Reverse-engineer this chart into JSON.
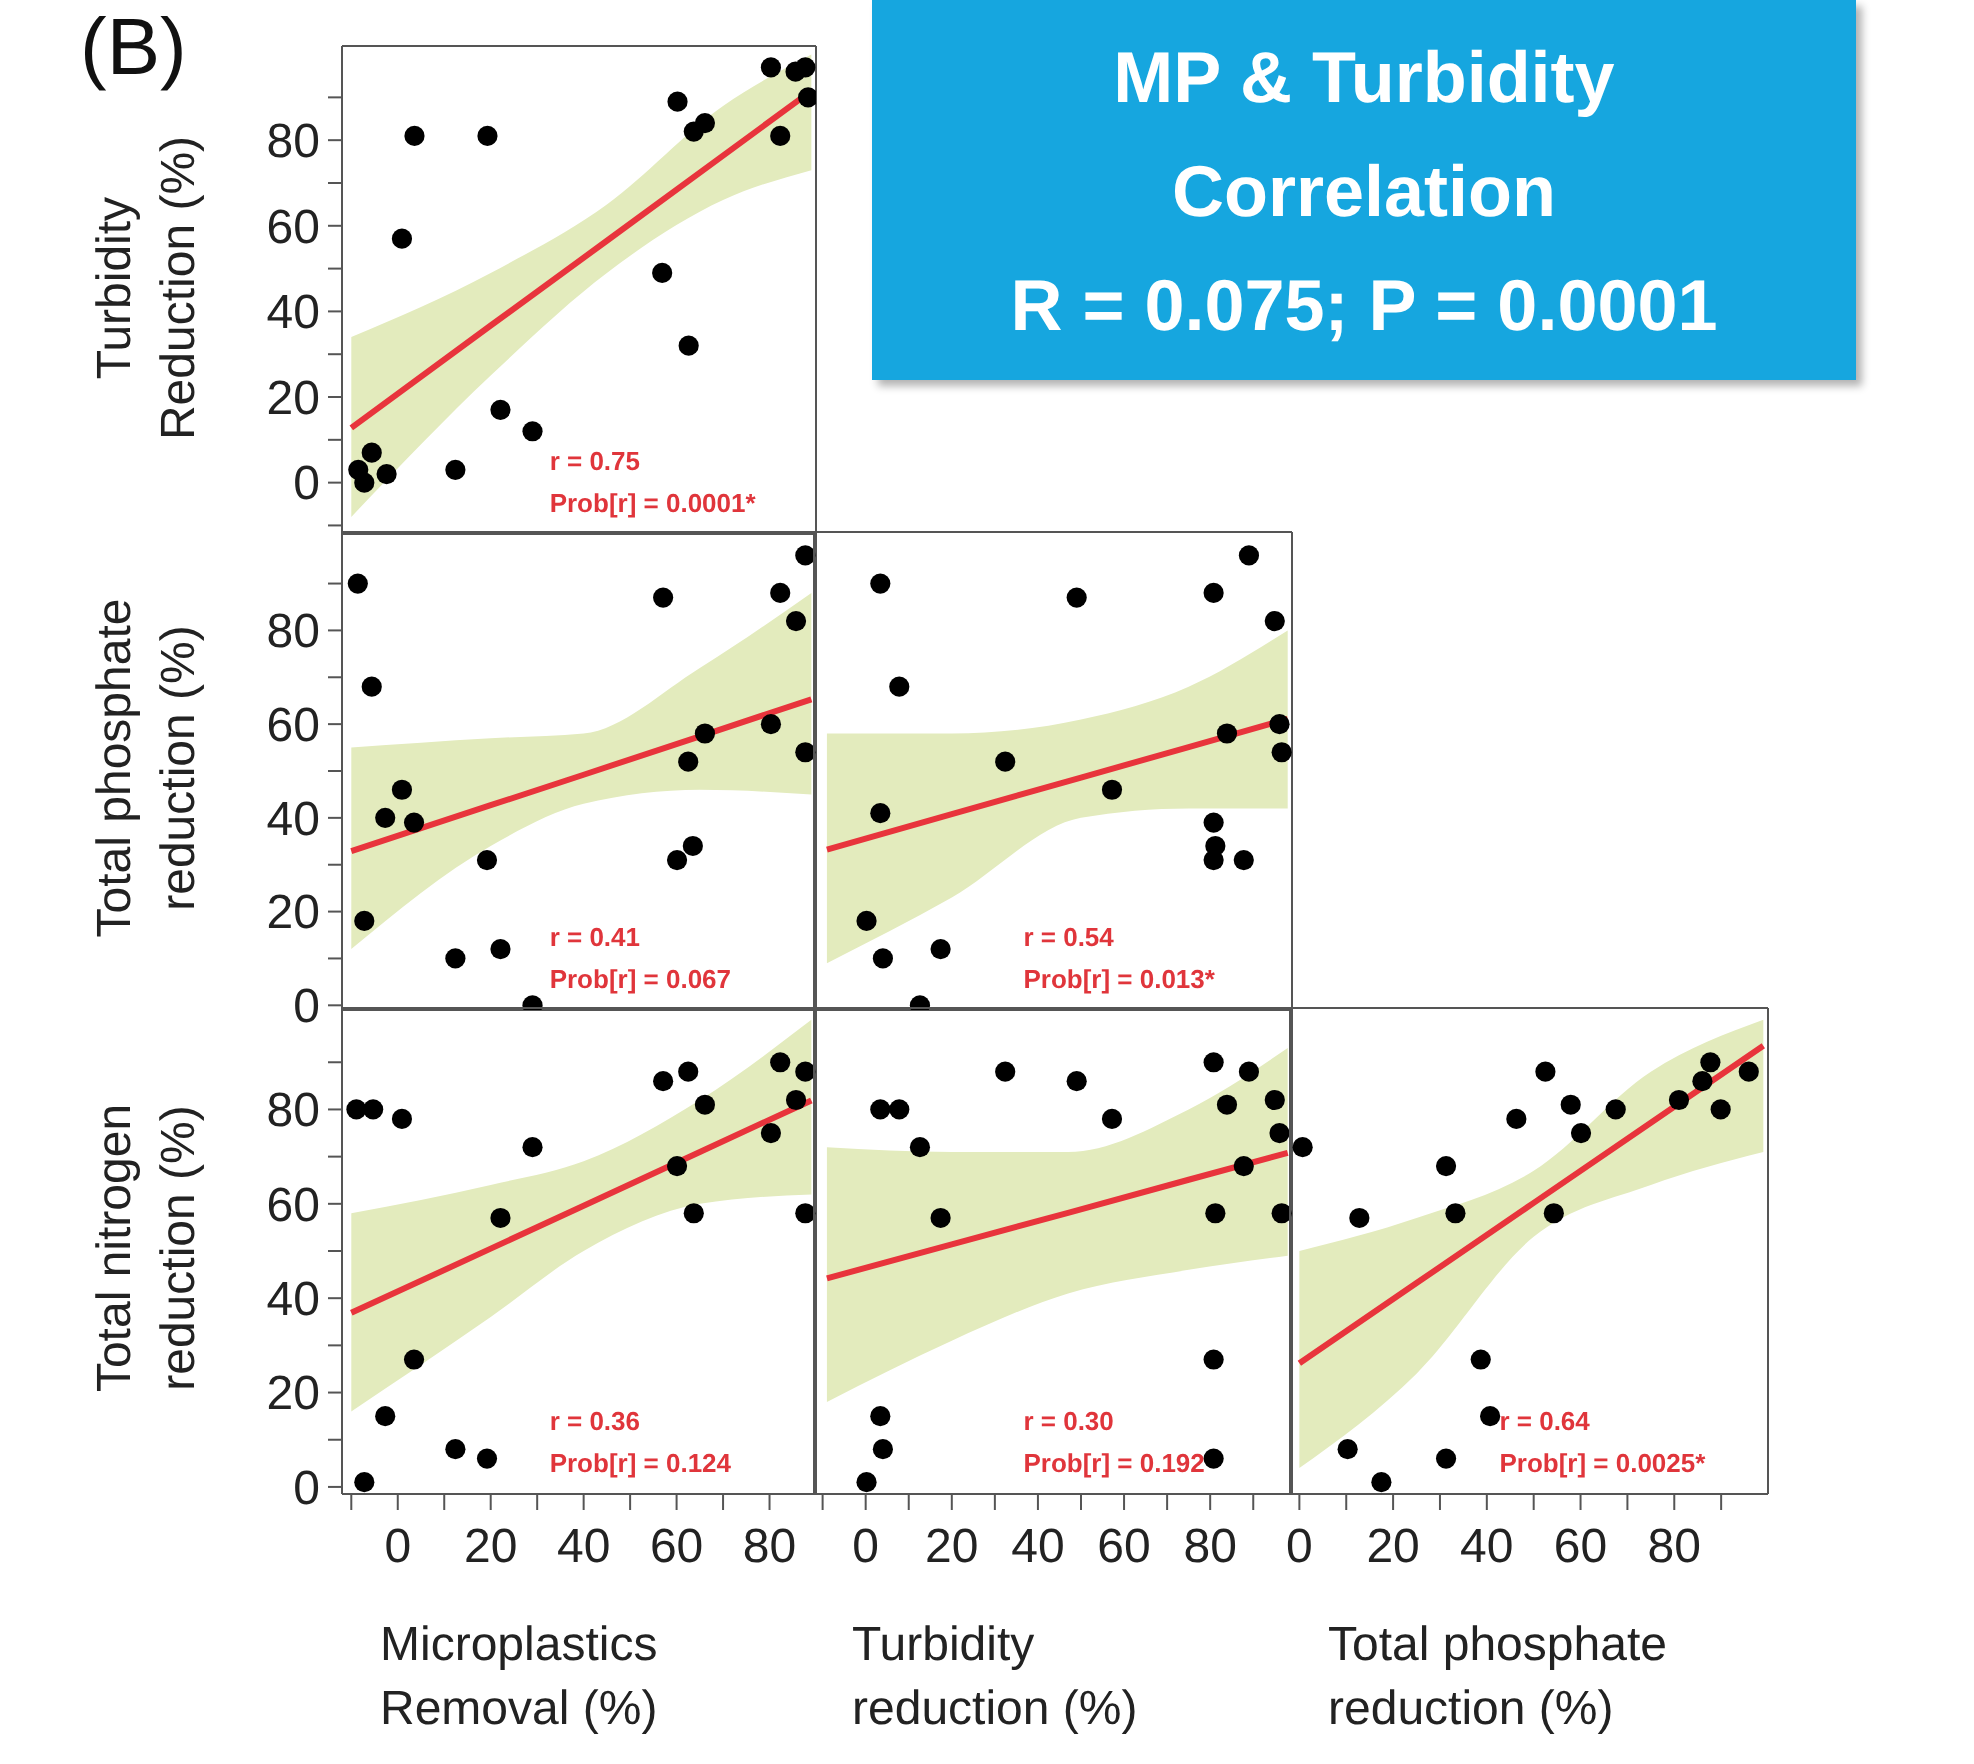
{
  "chart_data": [
    {
      "type": "scatter",
      "ylabel": "Turbidity\nReduction (%)",
      "xlim": [
        -12,
        90
      ],
      "ylim": [
        -12,
        102
      ],
      "yticks": [
        {
          "value": -10,
          "label": null
        },
        0,
        {
          "value": 10,
          "label": null
        },
        20,
        {
          "value": 30,
          "label": null
        },
        40,
        {
          "value": 50,
          "label": null
        },
        60,
        {
          "value": 70,
          "label": null
        },
        80,
        {
          "value": 90,
          "label": null
        }
      ],
      "tick_labels": "y",
      "marker": "circle",
      "line_style": "solid",
      "annotations": [
        "r = 0.75",
        "Prob[r] = 0.0001*",
        "(B)",
        "MP & Turbidity\nCorrelation\nR = 0.075; P = 0.0001"
      ],
      "series": [
        {
          "type": "scatter",
          "color": "#000000",
          "x": [
            -8.5,
            -7.2,
            -5.6,
            -2.4,
            0.9,
            3.6,
            12.4,
            19.3,
            22.1,
            29,
            56.9,
            60.2,
            62.6,
            63.7,
            66.1,
            80.3,
            82.3,
            85.6,
            87.7,
            88.3
          ],
          "values": [
            3,
            0,
            7,
            2,
            57,
            81,
            3,
            81,
            17,
            12,
            49,
            89,
            32,
            82,
            84,
            97,
            81,
            96,
            97,
            90
          ]
        },
        {
          "type": "line",
          "marker": "none",
          "color": "#e8343c",
          "x": [
            -10,
            20,
            45,
            70,
            89
          ],
          "values": [
            12.8,
            36.7,
            56.5,
            76.4,
            91.5
          ],
          "lower": [
            -8,
            25,
            49,
            66,
            73
          ],
          "upper": [
            34,
            49,
            65,
            88,
            100
          ]
        }
      ]
    },
    {
      "type": "scatter",
      "ylabel": "Total phosphate\nreduction (%)",
      "xlim": [
        -12,
        90
      ],
      "ylim": [
        -1,
        101
      ],
      "yticks": [
        0,
        {
          "value": 10,
          "label": null
        },
        20,
        {
          "value": 30,
          "label": null
        },
        40,
        {
          "value": 50,
          "label": null
        },
        60,
        {
          "value": 70,
          "label": null
        },
        80,
        {
          "value": 90,
          "label": null
        }
      ],
      "tick_labels": "y",
      "marker": "circle",
      "line_style": "solid",
      "annotations": [
        "r = 0.41",
        "Prob[r] = 0.067"
      ],
      "series": [
        {
          "type": "scatter",
          "color": "#000000",
          "x": [
            -8.6,
            -5.6,
            -7.2,
            -2.7,
            0.9,
            3.5,
            12.4,
            19.2,
            22.1,
            29,
            57.1,
            60.1,
            62.5,
            63.5,
            66.1,
            80.3,
            82.3,
            85.7,
            87.7,
            87.7
          ],
          "values": [
            90,
            68,
            18,
            40,
            46,
            39,
            10,
            31,
            12,
            0,
            87,
            31,
            52,
            34,
            58,
            60,
            88,
            82,
            96,
            54
          ]
        },
        {
          "type": "line",
          "marker": "none",
          "color": "#e8343c",
          "x": [
            -10,
            20,
            40,
            65,
            89
          ],
          "values": [
            32.9,
            42.7,
            49.2,
            57.4,
            65.3
          ],
          "lower": [
            12,
            34,
            43,
            46,
            45
          ],
          "upper": [
            55,
            57,
            58,
            72,
            88
          ]
        }
      ]
    },
    {
      "type": "scatter",
      "xlim": [
        -12,
        99
      ],
      "ylim": [
        -1,
        101
      ],
      "tick_labels": false,
      "marker": "circle",
      "line_style": "solid",
      "annotations": [
        "r = 0.54",
        "Prob[r] = 0.013*"
      ],
      "series": [
        {
          "type": "scatter",
          "color": "#000000",
          "x": [
            3.4,
            7.8,
            3.4,
            0.2,
            4,
            17.4,
            12.6,
            32.4,
            49,
            57.2,
            80.8,
            80.8,
            81.2,
            80.8,
            87.8,
            83.9,
            89,
            95,
            96.1,
            96.6
          ],
          "values": [
            90,
            68,
            41,
            18,
            10,
            12,
            0,
            52,
            87,
            46,
            88,
            39,
            34,
            31,
            31,
            58,
            96,
            82,
            60,
            54
          ]
        },
        {
          "type": "line",
          "marker": "none",
          "color": "#e8343c",
          "x": [
            -9,
            20,
            50,
            75,
            98
          ],
          "values": [
            33.2,
            40.8,
            48.6,
            55.1,
            61.1
          ],
          "lower": [
            9,
            23,
            40,
            42,
            42
          ],
          "upper": [
            58,
            58,
            61,
            68,
            80
          ]
        }
      ]
    },
    {
      "type": "scatter",
      "xlabel": "Microplastics\nRemoval (%)",
      "ylabel": "Total nitrogen\nreduction (%)",
      "xlim": [
        -12,
        90
      ],
      "ylim": [
        -1.5,
        101.5
      ],
      "xticks": [
        {
          "value": -10,
          "label": null
        },
        0,
        {
          "value": 10,
          "label": null
        },
        20,
        {
          "value": 30,
          "label": null
        },
        40,
        {
          "value": 50,
          "label": null
        },
        60,
        {
          "value": 70,
          "label": null
        },
        80
      ],
      "yticks": [
        0,
        {
          "value": 10,
          "label": null
        },
        20,
        {
          "value": 30,
          "label": null
        },
        40,
        {
          "value": 50,
          "label": null
        },
        60,
        {
          "value": 70,
          "label": null
        },
        80,
        {
          "value": 90,
          "label": null
        }
      ],
      "marker": "circle",
      "line_style": "solid",
      "annotations": [
        "r = 0.36",
        "Prob[r] = 0.124"
      ],
      "series": [
        {
          "type": "scatter",
          "color": "#000000",
          "x": [
            -8.9,
            -5.3,
            0.9,
            29,
            22.1,
            3.5,
            -2.7,
            -7.2,
            12.4,
            19.2,
            57.1,
            62.5,
            66.1,
            60.1,
            63.7,
            80.3,
            82.3,
            85.7,
            87.7,
            87.7
          ],
          "values": [
            80,
            80,
            78,
            72,
            57,
            27,
            15,
            1,
            8,
            6,
            86,
            88,
            81,
            68,
            58,
            75,
            90,
            82,
            88,
            58
          ]
        },
        {
          "type": "line",
          "marker": "none",
          "color": "#e8343c",
          "x": [
            -10,
            20,
            40,
            65,
            89
          ],
          "values": [
            36.9,
            50.5,
            59.6,
            71,
            81.9
          ],
          "lower": [
            16,
            36,
            50,
            60,
            62
          ],
          "upper": [
            58,
            64,
            69,
            82,
            99
          ]
        }
      ]
    },
    {
      "type": "scatter",
      "xlabel": "Turbidity\nreduction (%)",
      "xlim": [
        -12,
        99
      ],
      "ylim": [
        -1.5,
        101.5
      ],
      "xticks": [
        {
          "value": -10,
          "label": null
        },
        0,
        {
          "value": 10,
          "label": null
        },
        20,
        {
          "value": 30,
          "label": null
        },
        40,
        {
          "value": 50,
          "label": null
        },
        60,
        {
          "value": 70,
          "label": null
        },
        80,
        {
          "value": 90,
          "label": null
        }
      ],
      "tick_labels": "x",
      "marker": "circle",
      "line_style": "solid",
      "annotations": [
        "r = 0.30",
        "Prob[r] = 0.192"
      ],
      "series": [
        {
          "type": "scatter",
          "color": "#000000",
          "x": [
            0.2,
            3.4,
            4,
            3.4,
            7.8,
            12.6,
            17.4,
            32.4,
            49,
            57.2,
            80.8,
            81.2,
            80.8,
            80.8,
            83.9,
            87.8,
            89,
            95,
            96.1,
            96.6
          ],
          "values": [
            1,
            15,
            8,
            80,
            80,
            72,
            57,
            88,
            86,
            78,
            90,
            58,
            27,
            6,
            81,
            68,
            88,
            82,
            75,
            58
          ]
        },
        {
          "type": "line",
          "marker": "none",
          "color": "#e8343c",
          "x": [
            -9,
            20,
            47,
            75,
            98
          ],
          "values": [
            44.2,
            51.4,
            58.1,
            65.1,
            70.8
          ],
          "lower": [
            18,
            31,
            41,
            46,
            49
          ],
          "upper": [
            72,
            71,
            71,
            80,
            93
          ]
        }
      ]
    },
    {
      "type": "scatter",
      "xlabel": "Total phosphate\nreduction (%)",
      "xlim": [
        -2,
        100
      ],
      "ylim": [
        -1.5,
        101.5
      ],
      "xticks": [
        0,
        {
          "value": 10,
          "label": null
        },
        20,
        {
          "value": 30,
          "label": null
        },
        40,
        {
          "value": 50,
          "label": null
        },
        60,
        {
          "value": 70,
          "label": null
        },
        80,
        {
          "value": 90,
          "label": null
        }
      ],
      "tick_labels": "x",
      "marker": "circle",
      "line_style": "solid",
      "annotations": [
        "r = 0.64",
        "Prob[r] = 0.0025*"
      ],
      "series": [
        {
          "type": "scatter",
          "color": "#000000",
          "x": [
            0.7,
            12.8,
            10.3,
            17.5,
            31.3,
            33.3,
            31.3,
            38.7,
            40.7,
            46.3,
            52.5,
            54.3,
            57.9,
            60.1,
            67.5,
            81,
            86,
            87.7,
            89.9,
            95.9
          ],
          "values": [
            72,
            57,
            8,
            1,
            68,
            58,
            6,
            27,
            15,
            78,
            88,
            58,
            81,
            75,
            80,
            82,
            86,
            90,
            80,
            88
          ]
        },
        {
          "type": "line",
          "marker": "none",
          "color": "#e8343c",
          "x": [
            0,
            25,
            50,
            75,
            99
          ],
          "values": [
            26.2,
            43.2,
            60.2,
            77.2,
            93.5
          ],
          "lower": [
            4,
            24,
            53,
            64,
            71
          ],
          "upper": [
            50,
            57,
            67,
            88,
            99
          ]
        }
      ]
    }
  ]
}
